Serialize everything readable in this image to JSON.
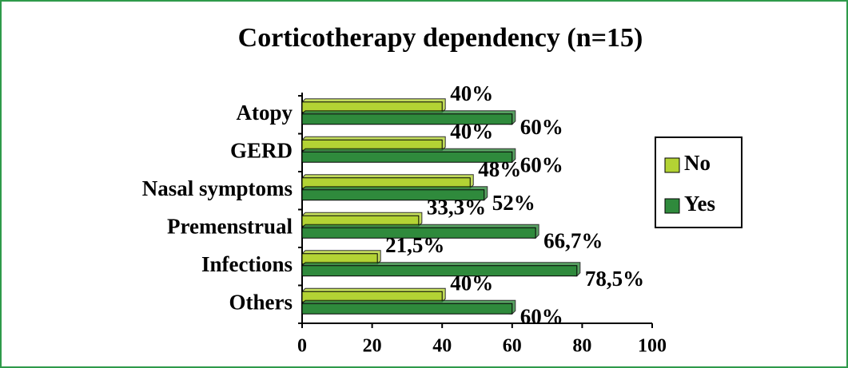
{
  "chart_data": {
    "type": "hbar",
    "title": "Corticotherapy dependency (n=15)",
    "categories": [
      "Atopy",
      "GERD",
      "Nasal symptoms",
      "Premenstrual",
      "Infections",
      "Others"
    ],
    "series": [
      {
        "name": "No",
        "color": "#b3d334",
        "values": [
          40,
          40,
          48,
          33.3,
          21.5,
          40
        ],
        "value_labels": [
          "40%",
          "40%",
          "48%",
          "33,3%",
          "21,5%",
          "40%"
        ]
      },
      {
        "name": "Yes",
        "color": "#2f8a3c",
        "values": [
          60,
          60,
          52,
          66.7,
          78.5,
          60
        ],
        "value_labels": [
          "60%",
          "60%",
          "52%",
          "66,7%",
          "78,5%",
          "60%"
        ]
      }
    ],
    "xlim": [
      0,
      100
    ],
    "xticks": [
      0,
      20,
      40,
      60,
      80,
      100
    ],
    "legend": "right"
  }
}
